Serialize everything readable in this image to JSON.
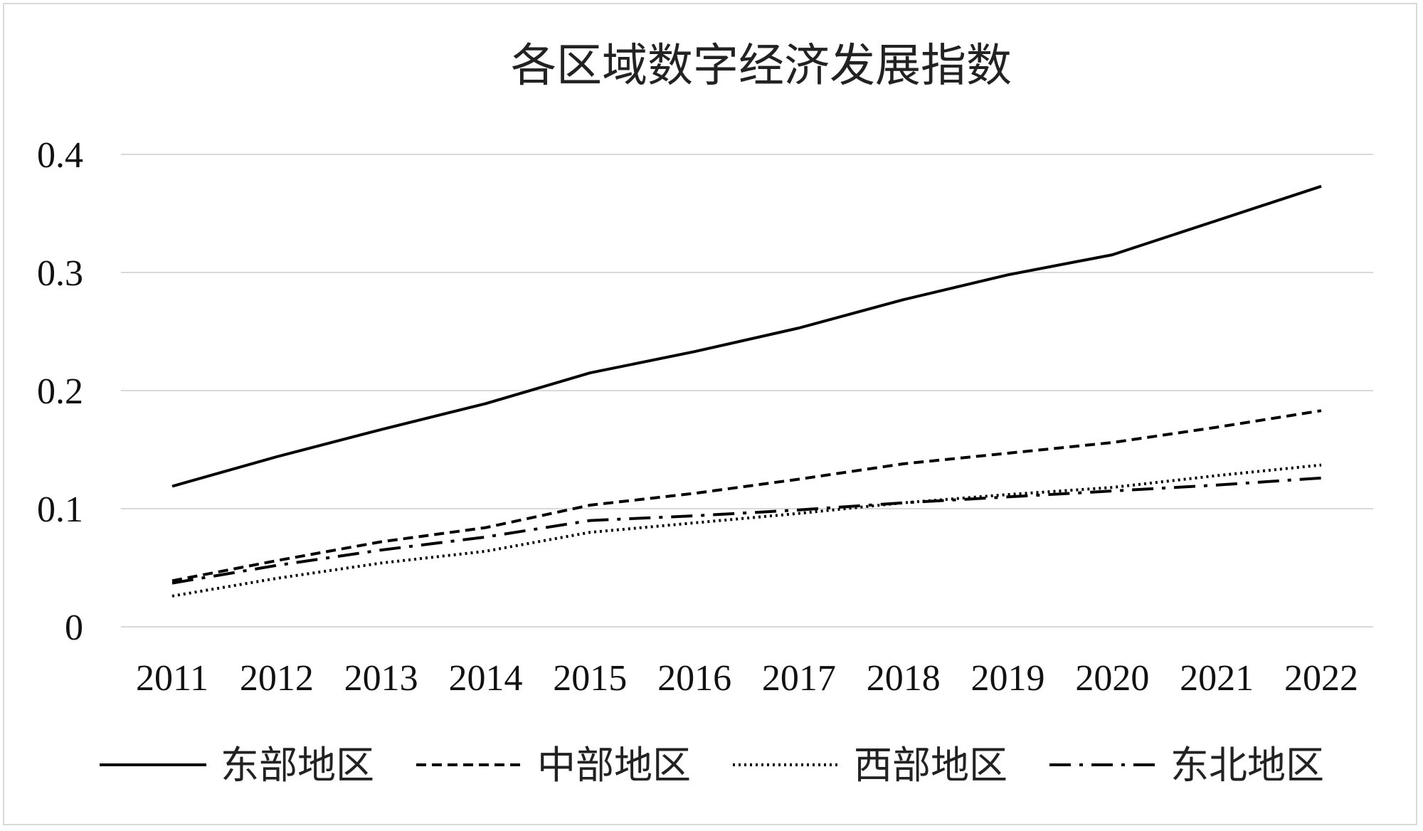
{
  "chart_data": {
    "type": "line",
    "title": "各区域数字经济发展指数",
    "xlabel": "",
    "ylabel": "",
    "x": [
      "2011",
      "2012",
      "2013",
      "2014",
      "2015",
      "2016",
      "2017",
      "2018",
      "2019",
      "2020",
      "2021",
      "2022"
    ],
    "ylim": [
      0,
      0.4
    ],
    "yticks": [
      "0",
      "0.1",
      "0.2",
      "0.3",
      "0.4"
    ],
    "grid": true,
    "legend_position": "bottom",
    "series": [
      {
        "name": "东部地区",
        "style": "solid",
        "color": "#000000",
        "values": [
          0.119,
          0.144,
          0.167,
          0.189,
          0.215,
          0.233,
          0.253,
          0.277,
          0.298,
          0.315,
          0.344,
          0.373
        ]
      },
      {
        "name": "中部地区",
        "style": "dashed",
        "color": "#000000",
        "values": [
          0.039,
          0.056,
          0.072,
          0.084,
          0.103,
          0.113,
          0.125,
          0.138,
          0.147,
          0.156,
          0.169,
          0.183
        ]
      },
      {
        "name": "西部地区",
        "style": "dotted",
        "color": "#000000",
        "values": [
          0.026,
          0.041,
          0.054,
          0.064,
          0.08,
          0.088,
          0.096,
          0.105,
          0.112,
          0.118,
          0.128,
          0.137
        ]
      },
      {
        "name": "东北地区",
        "style": "longdash-dot",
        "color": "#000000",
        "values": [
          0.037,
          0.052,
          0.065,
          0.076,
          0.09,
          0.094,
          0.099,
          0.105,
          0.11,
          0.115,
          0.12,
          0.126
        ]
      }
    ]
  }
}
